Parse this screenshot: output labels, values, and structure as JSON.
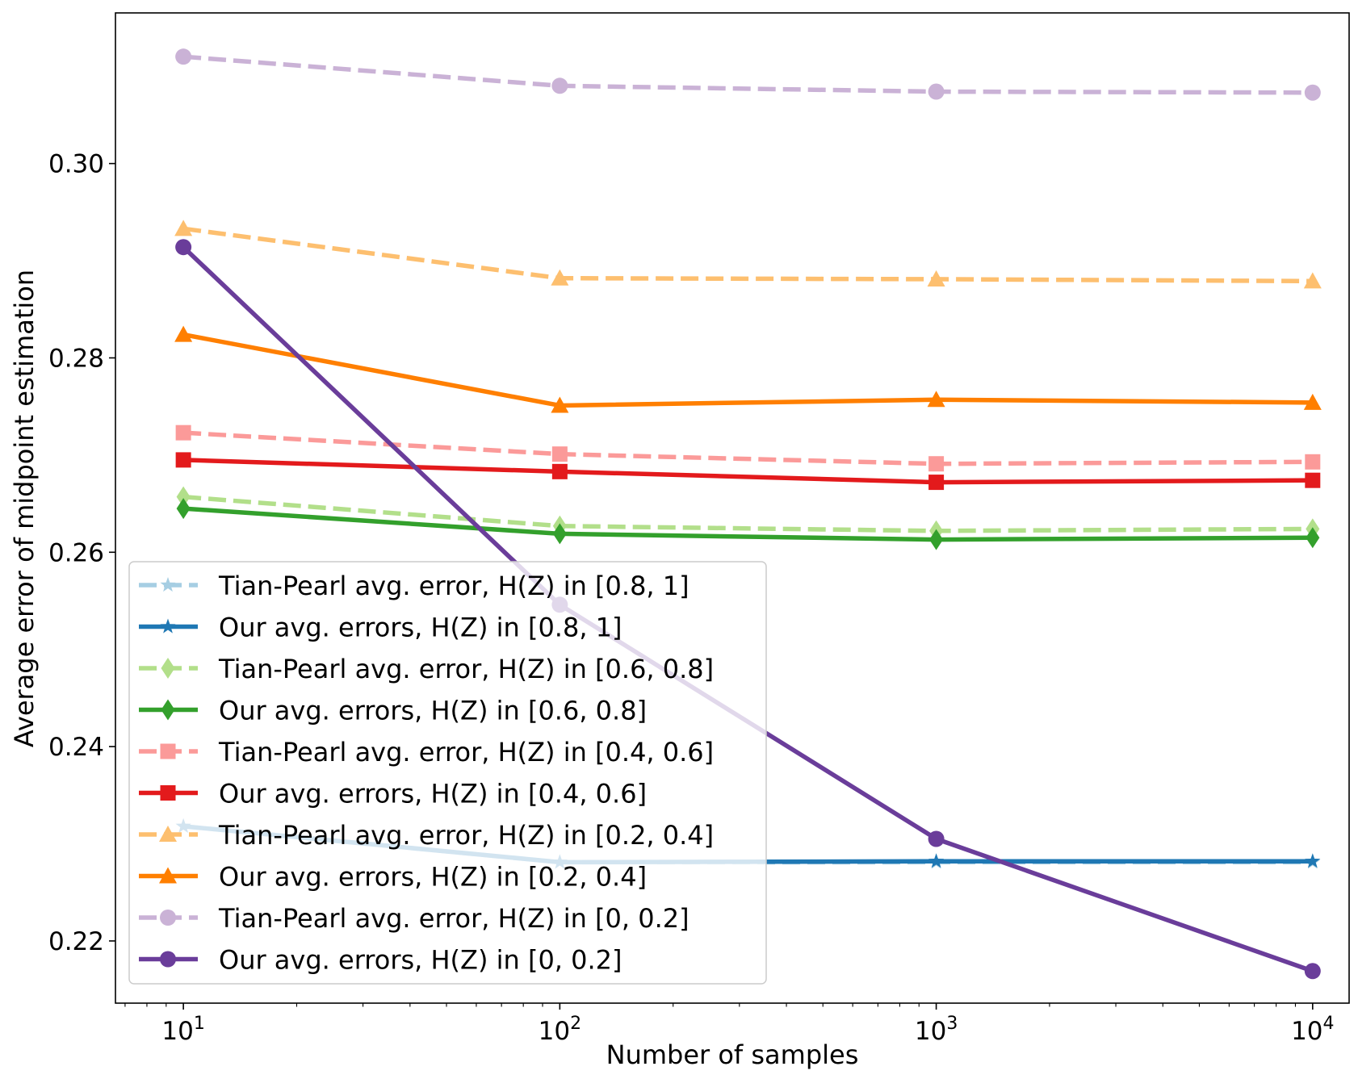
{
  "chart_data": {
    "type": "line",
    "title": "",
    "xlabel": "Number of samples",
    "ylabel": "Average error of midpoint estimation",
    "x": [
      10,
      100,
      1000,
      10000
    ],
    "xscale": "log",
    "xlim": [
      6.6,
      12500
    ],
    "ylim": [
      0.2136,
      0.3155
    ],
    "x_ticks": [
      {
        "value": 10,
        "base": "10",
        "exp": "1"
      },
      {
        "value": 100,
        "base": "10",
        "exp": "2"
      },
      {
        "value": 1000,
        "base": "10",
        "exp": "3"
      },
      {
        "value": 10000,
        "base": "10",
        "exp": "4"
      }
    ],
    "y_ticks": [
      {
        "value": 0.22,
        "label": "0.22"
      },
      {
        "value": 0.24,
        "label": "0.24"
      },
      {
        "value": 0.26,
        "label": "0.26"
      },
      {
        "value": 0.28,
        "label": "0.28"
      },
      {
        "value": 0.3,
        "label": "0.30"
      }
    ],
    "grid": false,
    "legend_position": "lower-left",
    "series": [
      {
        "name": "Tian-Pearl avg. error, H(Z) in [0.8, 1]",
        "values": [
          0.2318,
          0.2281,
          0.2281,
          0.2281
        ],
        "color": "#a6cee3",
        "dash": true,
        "marker": "star"
      },
      {
        "name": "Our avg. errors, H(Z) in [0.8, 1]",
        "values": [
          0.2318,
          0.2281,
          0.2282,
          0.2282
        ],
        "color": "#1f78b4",
        "dash": false,
        "marker": "star"
      },
      {
        "name": "Tian-Pearl avg. error, H(Z) in [0.6, 0.8]",
        "values": [
          0.2657,
          0.2627,
          0.2622,
          0.2624
        ],
        "color": "#b2df8a",
        "dash": true,
        "marker": "diamond"
      },
      {
        "name": "Our avg. errors, H(Z) in [0.6, 0.8]",
        "values": [
          0.2645,
          0.2619,
          0.2613,
          0.2615
        ],
        "color": "#33a02c",
        "dash": false,
        "marker": "diamond"
      },
      {
        "name": "Tian-Pearl avg. error, H(Z) in [0.4, 0.6]",
        "values": [
          0.2723,
          0.2701,
          0.2691,
          0.2693
        ],
        "color": "#fb9a99",
        "dash": true,
        "marker": "square"
      },
      {
        "name": "Our avg. errors, H(Z) in [0.4, 0.6]",
        "values": [
          0.2695,
          0.2683,
          0.2672,
          0.2674
        ],
        "color": "#e31a1c",
        "dash": false,
        "marker": "square"
      },
      {
        "name": "Tian-Pearl avg. error, H(Z) in [0.2, 0.4]",
        "values": [
          0.2933,
          0.2882,
          0.2881,
          0.2879
        ],
        "color": "#fdbf6f",
        "dash": true,
        "marker": "triangle"
      },
      {
        "name": "Our avg. errors, H(Z) in [0.2, 0.4]",
        "values": [
          0.2824,
          0.2751,
          0.2757,
          0.2754
        ],
        "color": "#ff7f00",
        "dash": false,
        "marker": "triangle"
      },
      {
        "name": "Tian-Pearl avg. error, H(Z) in [0, 0.2]",
        "values": [
          0.311,
          0.308,
          0.3074,
          0.3073
        ],
        "color": "#cab2d6",
        "dash": true,
        "marker": "circle"
      },
      {
        "name": "Our avg. errors, H(Z) in [0, 0.2]",
        "values": [
          0.2914,
          0.2546,
          0.2305,
          0.2169
        ],
        "color": "#6a3d9a",
        "dash": false,
        "marker": "circle"
      }
    ]
  }
}
